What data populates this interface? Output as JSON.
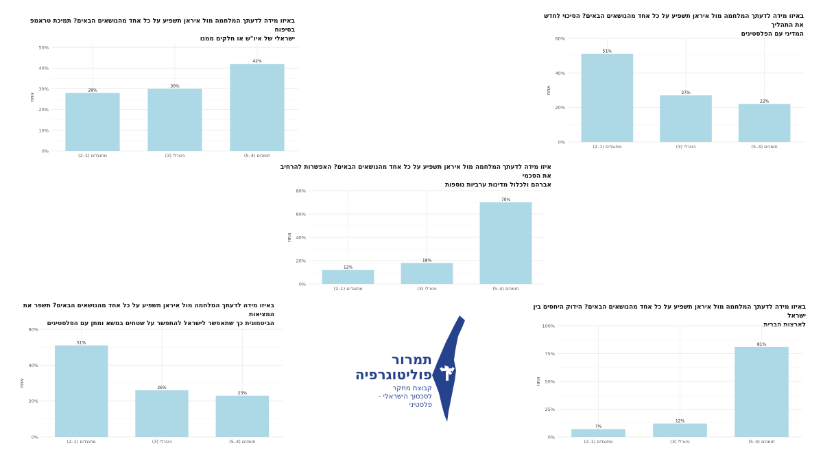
{
  "chart_data": [
    {
      "type": "bar",
      "title_lines": [
        "באיזו מידה לדעתך המלחמה מול איראן תשפיע על כל אחד מהנושאים הבאים? תמיכת טראמפ בסיפוח",
        "ישראלי של איו\"ש או חלקים ממנו"
      ],
      "ylabel": "אחוז",
      "categories": [
        "מתנגדים (1–2)",
        "ניטרלי (3)",
        "תומכים (4–5)"
      ],
      "values": [
        28,
        30,
        42
      ],
      "value_labels": [
        "28%",
        "30%",
        "42%"
      ],
      "yticks": [
        0,
        10,
        20,
        30,
        40,
        50
      ],
      "ytick_labels": [
        "0%",
        "10%",
        "20%",
        "30%",
        "40%",
        "50%"
      ],
      "ylim": [
        0,
        52
      ],
      "bar_color": "#add8e6"
    },
    {
      "type": "bar",
      "title_lines": [
        "באיזו מידה לדעתך המלחמה מול איראן תשפיע על כל אחד מהנושאים הבאים? הסיכוי לחדש את התהליך",
        "המדיני עם הפלסטינים"
      ],
      "ylabel": "אחוז",
      "categories": [
        "מתנגדים (1–2)",
        "ניטרלי (3)",
        "תומכים (4–5)"
      ],
      "values": [
        51,
        27,
        22
      ],
      "value_labels": [
        "51%",
        "27%",
        "22%"
      ],
      "yticks": [
        0,
        20,
        40,
        60
      ],
      "ytick_labels": [
        "0%",
        "20%",
        "40%",
        "60%"
      ],
      "ylim": [
        0,
        60
      ],
      "bar_color": "#add8e6"
    },
    {
      "type": "bar",
      "title_lines": [
        "איזו מידה לדעתך המלחמה מול איראן תשפיע על כל אחד מהנושאים הבאים? האפשרות להרחיב את הסכמי",
        "אברהם ולכלול מדינות ערביות נוספות"
      ],
      "ylabel": "אחוז",
      "categories": [
        "מתנגדים (1–2)",
        "ניטרלי (3)",
        "תומכים (4–5)"
      ],
      "values": [
        12,
        18,
        70
      ],
      "value_labels": [
        "12%",
        "18%",
        "70%"
      ],
      "yticks": [
        0,
        20,
        40,
        60,
        80
      ],
      "ytick_labels": [
        "0%",
        "20%",
        "40%",
        "60%",
        "80%"
      ],
      "ylim": [
        0,
        80
      ],
      "bar_color": "#add8e6"
    },
    {
      "type": "bar",
      "title_lines": [
        "באיזו מידה לדעתך המלחמה מול איראן תשפיע על כל אחד מהנושאים הבאים? תשפר את המציאות",
        "הביטחונית כך שתאפשר לישראל להתפשר על שטחים במשא ומתן עם הפלסטינים"
      ],
      "ylabel": "אחוז",
      "categories": [
        "מתנגדים (1–2)",
        "ניטרלי (3)",
        "תומכים (4–5)"
      ],
      "values": [
        51,
        26,
        23
      ],
      "value_labels": [
        "51%",
        "26%",
        "23%"
      ],
      "yticks": [
        0,
        20,
        40,
        60
      ],
      "ytick_labels": [
        "0%",
        "20%",
        "40%",
        "60%"
      ],
      "ylim": [
        0,
        60
      ],
      "bar_color": "#add8e6"
    },
    {
      "type": "bar",
      "title_lines": [
        "באיזו מידה לדעתך המלחמה מול איראן תשפיע על כל אחד מהנושאים הבאים? הידוק היחסים בין ישראל",
        "לארצות הברית"
      ],
      "ylabel": "אחוז",
      "categories": [
        "מתנגדים (1–2)",
        "ניטרלי (3)",
        "תומכים (4–5)"
      ],
      "values": [
        7,
        12,
        81
      ],
      "value_labels": [
        "7%",
        "12%",
        "81%"
      ],
      "yticks": [
        0,
        25,
        50,
        75,
        100
      ],
      "ytick_labels": [
        "0%",
        "25%",
        "50%",
        "75%",
        "100%"
      ],
      "ylim": [
        0,
        100
      ],
      "bar_color": "#add8e6"
    }
  ],
  "logo": {
    "name_line1": "תמרור",
    "name_line2": "פוליטוגרפיה",
    "sub_line1": "קבוצת מחקר",
    "sub_line2": "לסכסוך הישראלי - פלסטיני",
    "color": "#27428c"
  }
}
